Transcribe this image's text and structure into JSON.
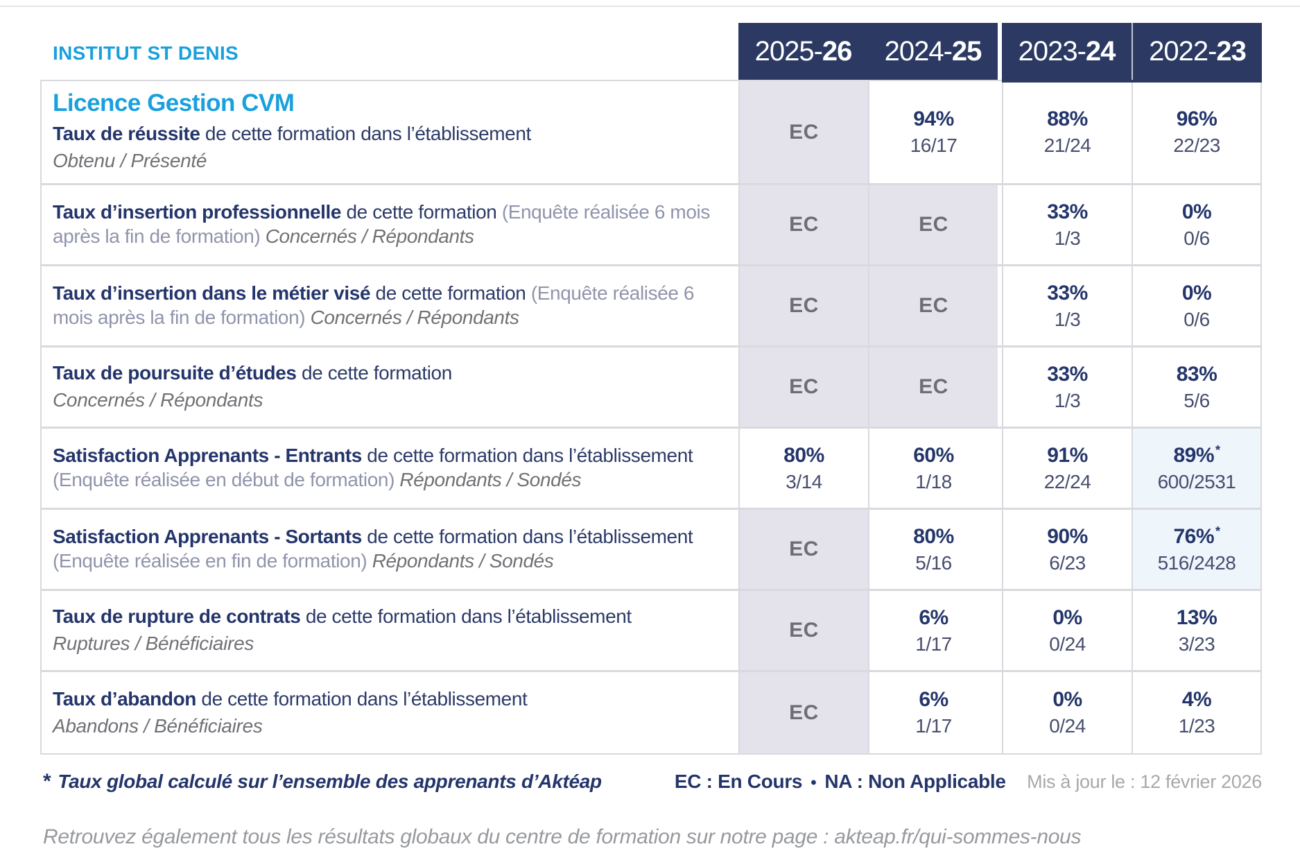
{
  "institute": "INSTITUT ST DENIS",
  "program_title": "Licence Gestion CVM",
  "year_columns": [
    {
      "label": "2025-26",
      "prefix": "2025-",
      "suffix": "26"
    },
    {
      "label": "2024-25",
      "prefix": "2024-",
      "suffix": "25"
    },
    {
      "label": "2023-24",
      "prefix": "2023-",
      "suffix": "24"
    },
    {
      "label": "2022-23",
      "prefix": "2022-",
      "suffix": "23"
    }
  ],
  "colors": {
    "accent_cyan": "#1aa0dc",
    "navy": "#24356b",
    "header_background": "#2c3a63",
    "ec_cell_background": "#e4e3ec",
    "starred_cell_background": "#eef6fc",
    "ec_text": "#6d6e71"
  },
  "rows": [
    {
      "title": "Taux de réussite",
      "desc": "de cette formation dans l’établissement",
      "paren": "",
      "sublabel": "Obtenu / Présenté",
      "sublabel_inline": false,
      "values": [
        {
          "status": "EC"
        },
        {
          "pct": "94%",
          "frac": "16/17"
        },
        {
          "pct": "88%",
          "frac": "21/24"
        },
        {
          "pct": "96%",
          "frac": "22/23"
        }
      ]
    },
    {
      "title": "Taux d’insertion professionnelle",
      "desc": "de cette formation",
      "paren": "(Enquête réalisée 6 mois après la fin de formation)",
      "sublabel": "Concernés / Répondants",
      "sublabel_inline": true,
      "values": [
        {
          "status": "EC"
        },
        {
          "status": "EC"
        },
        {
          "pct": "33%",
          "frac": "1/3"
        },
        {
          "pct": "0%",
          "frac": "0/6"
        }
      ]
    },
    {
      "title": "Taux d’insertion dans le métier visé",
      "desc": "de cette formation",
      "paren": "(Enquête réalisée 6 mois après la fin de formation)",
      "sublabel": "Concernés / Répondants",
      "sublabel_inline": true,
      "values": [
        {
          "status": "EC"
        },
        {
          "status": "EC"
        },
        {
          "pct": "33%",
          "frac": "1/3"
        },
        {
          "pct": "0%",
          "frac": "0/6"
        }
      ]
    },
    {
      "title": "Taux de poursuite d’études",
      "desc": "de cette formation",
      "paren": "",
      "sublabel": "Concernés / Répondants",
      "sublabel_inline": false,
      "values": [
        {
          "status": "EC"
        },
        {
          "status": "EC"
        },
        {
          "pct": "33%",
          "frac": "1/3"
        },
        {
          "pct": "83%",
          "frac": "5/6"
        }
      ]
    },
    {
      "title": "Satisfaction Apprenants - Entrants",
      "desc": "de cette formation dans l’établissement",
      "paren": "(Enquête réalisée en début de formation)",
      "sublabel": "Répondants / Sondés",
      "sublabel_inline": true,
      "values": [
        {
          "pct": "80%",
          "frac": "3/14"
        },
        {
          "pct": "60%",
          "frac": "1/18"
        },
        {
          "pct": "91%",
          "frac": "22/24"
        },
        {
          "pct": "89%",
          "frac": "600/2531",
          "starred": true
        }
      ]
    },
    {
      "title": "Satisfaction Apprenants - Sortants",
      "desc": "de cette formation dans l’établissement",
      "paren": "(Enquête réalisée en fin de formation)",
      "sublabel": "Répondants / Sondés",
      "sublabel_inline": true,
      "values": [
        {
          "status": "EC"
        },
        {
          "pct": "80%",
          "frac": "5/16"
        },
        {
          "pct": "90%",
          "frac": "6/23"
        },
        {
          "pct": "76%",
          "frac": "516/2428",
          "starred": true
        }
      ]
    },
    {
      "title": "Taux de rupture de contrats",
      "desc": "de cette formation dans l’établissement",
      "paren": "",
      "sublabel": "Ruptures / Bénéficiaires",
      "sublabel_inline": false,
      "values": [
        {
          "status": "EC"
        },
        {
          "pct": "6%",
          "frac": "1/17"
        },
        {
          "pct": "0%",
          "frac": "0/24"
        },
        {
          "pct": "13%",
          "frac": "3/23"
        }
      ]
    },
    {
      "title": "Taux d’abandon",
      "desc": "de cette formation dans l’établissement",
      "paren": "",
      "sublabel": "Abandons / Bénéficiaires",
      "sublabel_inline": false,
      "values": [
        {
          "status": "EC"
        },
        {
          "pct": "6%",
          "frac": "1/17"
        },
        {
          "pct": "0%",
          "frac": "0/24"
        },
        {
          "pct": "4%",
          "frac": "1/23"
        }
      ]
    }
  ],
  "footer": {
    "note_star": "*",
    "note": "Taux global calculé sur l’ensemble des apprenants d’Aktéap",
    "legend_ec": "EC : En Cours",
    "legend_sep": "•",
    "legend_na": "NA : Non Applicable",
    "updated": "Mis à jour le : 12 février 2026",
    "bottom": "Retrouvez également tous les résultats globaux du centre de formation sur notre page : akteap.fr/qui-sommes-nous"
  }
}
